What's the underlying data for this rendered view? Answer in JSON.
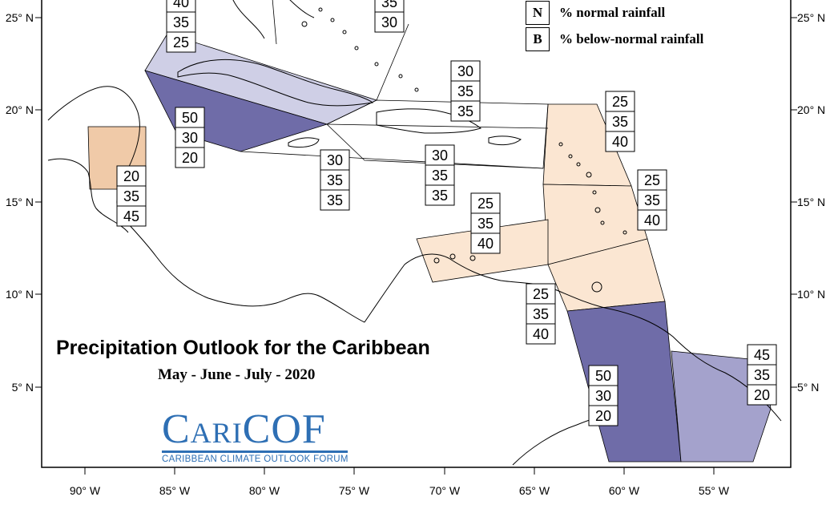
{
  "title": "Precipitation Outlook for the Caribbean",
  "subtitle": "May - June - July - 2020",
  "legend": [
    {
      "key": "N",
      "text": "% normal rainfall"
    },
    {
      "key": "B",
      "text": "% below-normal rainfall"
    }
  ],
  "logo": {
    "main": "CariCOF",
    "sub": "CARIBBEAN CLIMATE OUTLOOK FORUM"
  },
  "longitude_labels": [
    "90° W",
    "85° W",
    "80° W",
    "75° W",
    "70° W",
    "65° W",
    "60° W",
    "55° W"
  ],
  "latitude_labels": [
    "25° N",
    "20° N",
    "15° N",
    "10° N",
    "5° N"
  ],
  "colors": {
    "below_strong": "#6f6ca8",
    "below_moderate": "#a4a2cc",
    "below_light": "#cfcfe6",
    "above_light": "#fbe6d2",
    "above_moderate": "#f0caa8",
    "border": "#000000"
  },
  "outlook_boxes": [
    {
      "id": "bahamas-north",
      "values": [
        "40",
        "35",
        "25"
      ]
    },
    {
      "id": "bahamas-east",
      "values": [
        "35",
        "30"
      ]
    },
    {
      "id": "greater-antilles-central",
      "values": [
        "30",
        "35",
        "35"
      ]
    },
    {
      "id": "cayman",
      "values": [
        "50",
        "30",
        "20"
      ]
    },
    {
      "id": "belize",
      "values": [
        "20",
        "35",
        "45"
      ]
    },
    {
      "id": "jamaica",
      "values": [
        "30",
        "35",
        "35"
      ]
    },
    {
      "id": "hispaniola-south",
      "values": [
        "30",
        "35",
        "35"
      ]
    },
    {
      "id": "leeward-islands",
      "values": [
        "25",
        "35",
        "40"
      ]
    },
    {
      "id": "windward-islands",
      "values": [
        "25",
        "35",
        "40"
      ]
    },
    {
      "id": "abc-islands",
      "values": [
        "25",
        "35",
        "40"
      ]
    },
    {
      "id": "trinidad",
      "values": [
        "25",
        "35",
        "40"
      ]
    },
    {
      "id": "guyana",
      "values": [
        "50",
        "30",
        "20"
      ]
    },
    {
      "id": "suriname",
      "values": [
        "45",
        "35",
        "20"
      ]
    }
  ]
}
